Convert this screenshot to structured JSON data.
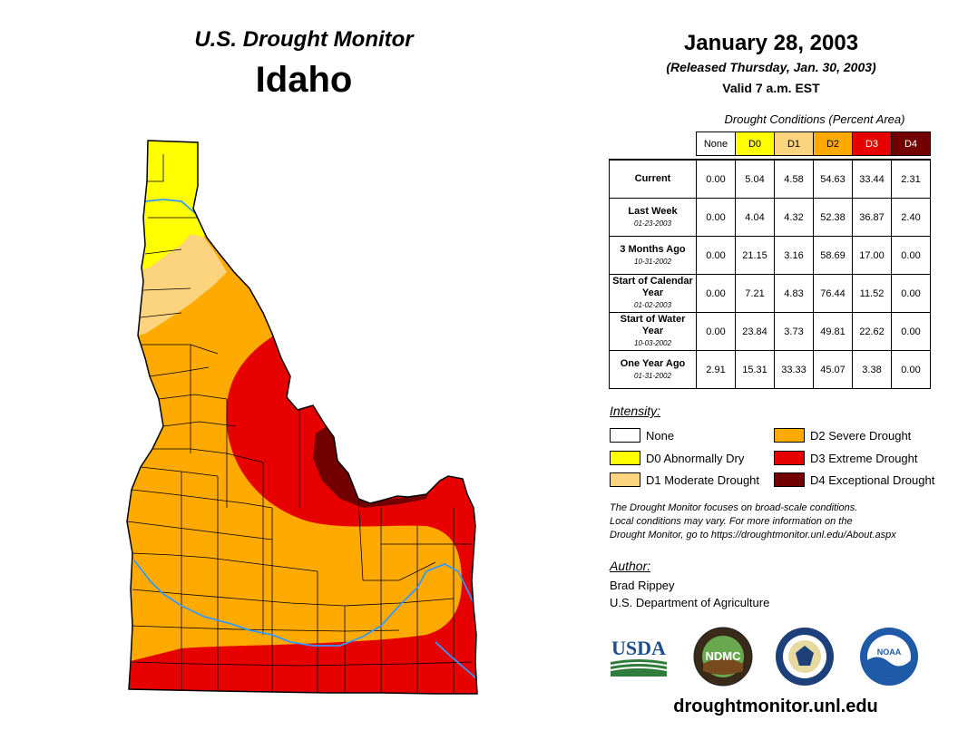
{
  "header": {
    "map_title": "U.S. Drought Monitor",
    "state": "Idaho",
    "date": "January 28, 2003",
    "released": "(Released Thursday, Jan. 30, 2003)",
    "valid": "Valid 7 a.m. EST"
  },
  "table": {
    "caption": "Drought Conditions (Percent Area)",
    "columns": [
      "None",
      "D0",
      "D1",
      "D2",
      "D3",
      "D4"
    ],
    "rows": [
      {
        "label": "Current",
        "date": "",
        "values": [
          "0.00",
          "5.04",
          "4.58",
          "54.63",
          "33.44",
          "2.31"
        ]
      },
      {
        "label": "Last Week",
        "date": "01-23-2003",
        "values": [
          "0.00",
          "4.04",
          "4.32",
          "52.38",
          "36.87",
          "2.40"
        ]
      },
      {
        "label": "3 Months Ago",
        "date": "10-31-2002",
        "values": [
          "0.00",
          "21.15",
          "3.16",
          "58.69",
          "17.00",
          "0.00"
        ]
      },
      {
        "label": "Start of Calendar Year",
        "date": "01-02-2003",
        "values": [
          "0.00",
          "7.21",
          "4.83",
          "76.44",
          "11.52",
          "0.00"
        ]
      },
      {
        "label": "Start of Water Year",
        "date": "10-03-2002",
        "values": [
          "0.00",
          "23.84",
          "3.73",
          "49.81",
          "22.62",
          "0.00"
        ]
      },
      {
        "label": "One Year Ago",
        "date": "01-31-2002",
        "values": [
          "2.91",
          "15.31",
          "33.33",
          "45.07",
          "3.38",
          "0.00"
        ]
      }
    ]
  },
  "legend": {
    "title": "Intensity:",
    "items": [
      {
        "label": "None",
        "color": "#ffffff"
      },
      {
        "label": "D0 Abnormally Dry",
        "color": "#ffff00"
      },
      {
        "label": "D1 Moderate Drought",
        "color": "#fcd37f"
      },
      {
        "label": "D2 Severe Drought",
        "color": "#ffaa00"
      },
      {
        "label": "D3 Extreme Drought",
        "color": "#e60000"
      },
      {
        "label": "D4 Exceptional Drought",
        "color": "#730000"
      }
    ]
  },
  "disclaimer": [
    "The Drought Monitor focuses on broad-scale conditions.",
    "Local conditions may vary. For more information on the",
    "Drought Monitor, go to https://droughtmonitor.unl.edu/About.aspx"
  ],
  "author": {
    "title": "Author:",
    "name": "Brad Rippey",
    "org": "U.S. Department of Agriculture"
  },
  "logos": {
    "usda": "USDA",
    "ndmc": "NDMC",
    "doc": "department-of-commerce-seal",
    "noaa": "NOAA"
  },
  "website": "droughtmonitor.unl.edu",
  "colors": {
    "none": "#ffffff",
    "d0": "#ffff00",
    "d1": "#fcd37f",
    "d2": "#ffaa00",
    "d3": "#e60000",
    "d4": "#730000",
    "rivers": "#3399ff"
  }
}
